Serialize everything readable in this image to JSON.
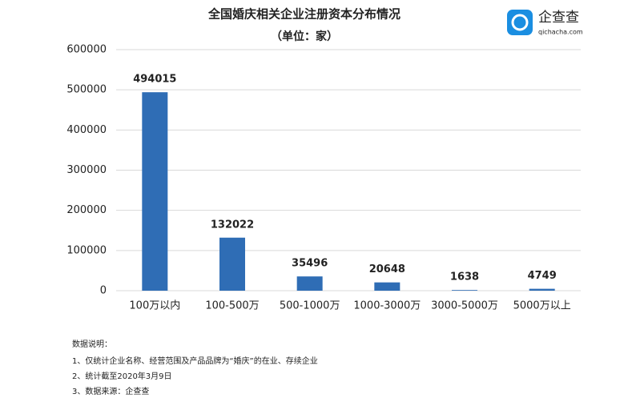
{
  "chart_data": {
    "type": "bar",
    "title": "全国婚庆相关企业注册资本分布情况",
    "subtitle": "（单位：家）",
    "categories": [
      "100万以内",
      "100-500万",
      "500-1000万",
      "1000-3000万",
      "3000-5000万",
      "5000万以上"
    ],
    "values": [
      494015,
      132022,
      35496,
      20648,
      1638,
      4749
    ],
    "color": "#2f6db5",
    "ylim": [
      0,
      600000
    ],
    "yticks": [
      0,
      100000,
      200000,
      300000,
      400000,
      500000,
      600000
    ],
    "grid": true
  },
  "logo": {
    "name": "企查查",
    "site": "qichacha.com"
  },
  "notes": {
    "title": "数据说明：",
    "lines": [
      "1、仅统计企业名称、经营范围及产品品牌为“婚庆”的在业、存续企业",
      "2、统计截至2020年3月9日",
      "3、数据来源：企查查"
    ]
  }
}
